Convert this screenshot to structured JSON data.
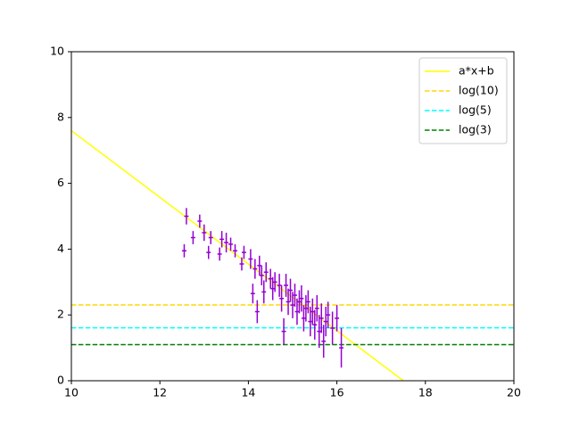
{
  "chart_data": {
    "type": "errorbar",
    "xlim": [
      10,
      20
    ],
    "xticks": [
      10,
      12,
      14,
      16,
      18,
      20
    ],
    "ylim": [
      0,
      10
    ],
    "yticks": [
      0,
      2,
      4,
      6,
      8,
      10
    ],
    "legend": "upper right",
    "points": {
      "color": "#9400d3",
      "xerr": 0.05,
      "x": [
        12.55,
        12.6,
        12.75,
        12.9,
        13.0,
        13.1,
        13.15,
        13.35,
        13.4,
        13.5,
        13.6,
        13.7,
        13.85,
        13.9,
        14.05,
        14.1,
        14.15,
        14.2,
        14.25,
        14.3,
        14.35,
        14.4,
        14.5,
        14.55,
        14.6,
        14.7,
        14.75,
        14.8,
        14.85,
        14.9,
        14.95,
        15.0,
        15.05,
        15.1,
        15.15,
        15.2,
        15.25,
        15.3,
        15.35,
        15.4,
        15.45,
        15.5,
        15.55,
        15.6,
        15.65,
        15.7,
        15.75,
        15.8,
        15.9,
        16.0,
        16.1
      ],
      "values": [
        3.95,
        5.0,
        4.35,
        4.85,
        4.5,
        3.9,
        4.35,
        3.85,
        4.3,
        4.2,
        4.15,
        3.95,
        3.55,
        3.9,
        3.7,
        2.65,
        3.4,
        2.1,
        3.5,
        3.2,
        2.7,
        3.3,
        3.1,
        2.8,
        3.0,
        2.9,
        2.5,
        1.5,
        2.9,
        2.4,
        2.75,
        2.3,
        2.6,
        2.1,
        2.4,
        2.5,
        1.9,
        2.2,
        2.4,
        1.8,
        2.1,
        1.7,
        2.2,
        1.5,
        1.9,
        1.2,
        1.8,
        2.0,
        1.6,
        1.9,
        1.0
      ],
      "yerr": [
        0.2,
        0.25,
        0.2,
        0.2,
        0.25,
        0.2,
        0.2,
        0.2,
        0.25,
        0.3,
        0.2,
        0.2,
        0.2,
        0.2,
        0.3,
        0.3,
        0.3,
        0.35,
        0.3,
        0.3,
        0.35,
        0.3,
        0.3,
        0.35,
        0.3,
        0.35,
        0.4,
        0.4,
        0.35,
        0.4,
        0.35,
        0.4,
        0.35,
        0.4,
        0.35,
        0.4,
        0.4,
        0.4,
        0.35,
        0.45,
        0.4,
        0.45,
        0.4,
        0.5,
        0.45,
        0.5,
        0.45,
        0.4,
        0.5,
        0.4,
        0.6
      ]
    },
    "series": [
      {
        "name": "a*x+b",
        "color": "#ffff00",
        "style": "solid",
        "x": [
          10,
          17.5
        ],
        "values": [
          7.6,
          0
        ]
      },
      {
        "name": "log(10)",
        "color": "#ffd700",
        "style": "dashed",
        "x": [
          10,
          20
        ],
        "values": [
          2.303,
          2.303
        ]
      },
      {
        "name": "log(5)",
        "color": "#00ffff",
        "style": "dashed",
        "x": [
          10,
          20
        ],
        "values": [
          1.609,
          1.609
        ]
      },
      {
        "name": "log(3)",
        "color": "#008000",
        "style": "dashed",
        "x": [
          10,
          20
        ],
        "values": [
          1.099,
          1.099
        ]
      }
    ]
  }
}
